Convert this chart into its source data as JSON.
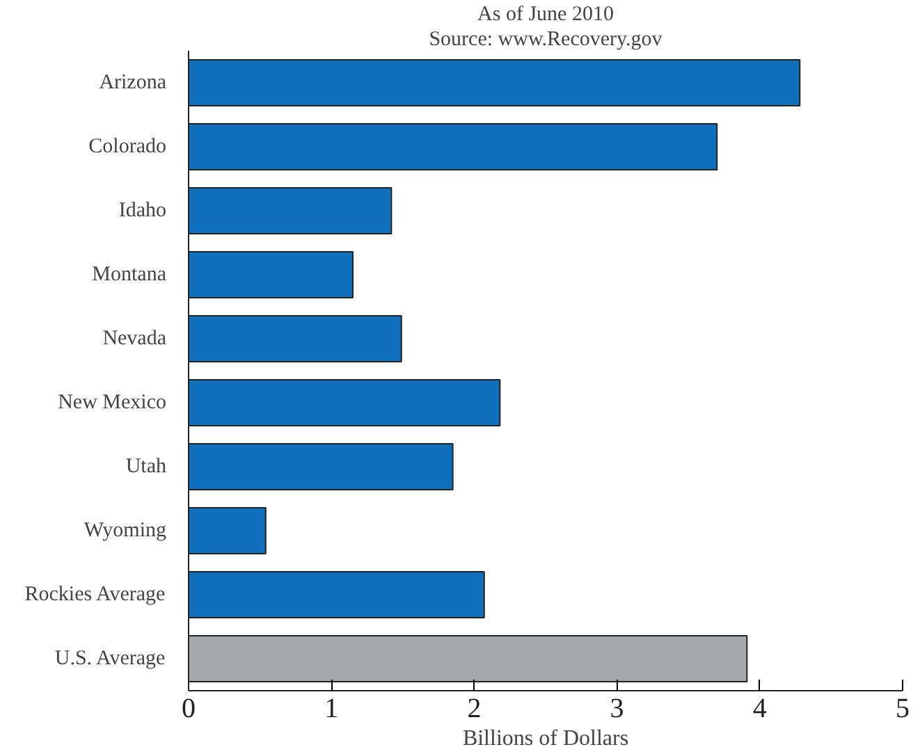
{
  "chart_data": {
    "type": "bar",
    "orientation": "horizontal",
    "title": "As of June 2010",
    "subtitle": "Source: www.Recovery.gov",
    "xlabel": "Billions of Dollars",
    "categories": [
      "Arizona",
      "Colorado",
      "Idaho",
      "Montana",
      "Nevada",
      "New Mexico",
      "Utah",
      "Wyoming",
      "Rockies Average",
      "U.S. Average"
    ],
    "values": [
      4.28,
      3.7,
      1.42,
      1.15,
      1.49,
      2.18,
      1.85,
      0.54,
      2.07,
      3.91
    ],
    "colors": [
      "#1170bd",
      "#1170bd",
      "#1170bd",
      "#1170bd",
      "#1170bd",
      "#1170bd",
      "#1170bd",
      "#1170bd",
      "#1170bd",
      "#a7a8ab"
    ],
    "xlim": [
      0,
      5
    ],
    "xticks": [
      0,
      1,
      2,
      3,
      4,
      5
    ]
  }
}
